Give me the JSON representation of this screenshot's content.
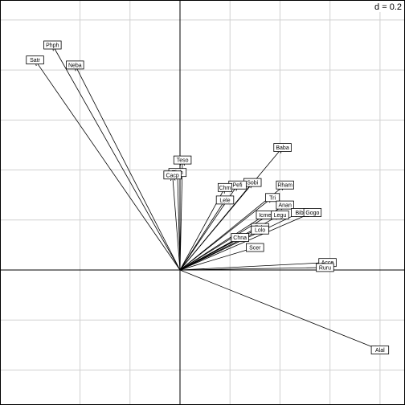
{
  "chart_data": {
    "type": "scatter",
    "title": "",
    "xlabel": "",
    "ylabel": "",
    "scale_label": "d = 0.2",
    "grid": true,
    "xlim": [
      -0.72,
      0.9
    ],
    "ylim": [
      -0.54,
      1.08
    ],
    "gridlines": [
      -0.4,
      -0.2,
      0,
      0.2,
      0.4,
      0.6,
      0.8,
      1.0
    ],
    "points": [
      {
        "name": "Phph",
        "x": -0.51,
        "y": 0.9
      },
      {
        "name": "Satr",
        "x": -0.58,
        "y": 0.84
      },
      {
        "name": "Neba",
        "x": -0.42,
        "y": 0.82
      },
      {
        "name": "Teso",
        "x": 0.01,
        "y": 0.44
      },
      {
        "name": "Thth",
        "x": -0.01,
        "y": 0.39
      },
      {
        "name": "Cacp",
        "x": -0.03,
        "y": 0.38
      },
      {
        "name": "Baba",
        "x": 0.41,
        "y": 0.49
      },
      {
        "name": "Sobi",
        "x": 0.29,
        "y": 0.35
      },
      {
        "name": "Pefi",
        "x": 0.23,
        "y": 0.34
      },
      {
        "name": "Chm",
        "x": 0.18,
        "y": 0.33
      },
      {
        "name": "Lele",
        "x": 0.18,
        "y": 0.28
      },
      {
        "name": "Rham",
        "x": 0.42,
        "y": 0.34
      },
      {
        "name": "Tri",
        "x": 0.37,
        "y": 0.29
      },
      {
        "name": "Anan",
        "x": 0.42,
        "y": 0.26
      },
      {
        "name": "Bibi",
        "x": 0.48,
        "y": 0.23
      },
      {
        "name": "Gogo",
        "x": 0.53,
        "y": 0.23
      },
      {
        "name": "Icme",
        "x": 0.34,
        "y": 0.22
      },
      {
        "name": "Legu",
        "x": 0.4,
        "y": 0.22
      },
      {
        "name": "Eslu",
        "x": 0.32,
        "y": 0.17
      },
      {
        "name": "Lolo",
        "x": 0.32,
        "y": 0.16
      },
      {
        "name": "Chna",
        "x": 0.24,
        "y": 0.13
      },
      {
        "name": "Scer",
        "x": 0.3,
        "y": 0.09
      },
      {
        "name": "Acce",
        "x": 0.59,
        "y": 0.03
      },
      {
        "name": "Ruru",
        "x": 0.58,
        "y": 0.01
      },
      {
        "name": "Alal",
        "x": 0.8,
        "y": -0.32
      }
    ]
  }
}
